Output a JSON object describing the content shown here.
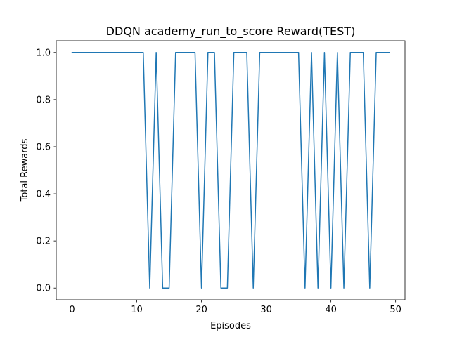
{
  "chart_data": {
    "type": "line",
    "title": "DDQN academy_run_to_score Reward(TEST)",
    "xlabel": "Episodes",
    "ylabel": "Total Rewards",
    "xlim": [
      -2.45,
      51.45
    ],
    "ylim": [
      -0.05,
      1.05
    ],
    "xticks": [
      0,
      10,
      20,
      30,
      40,
      50
    ],
    "xtick_labels": [
      "0",
      "10",
      "20",
      "30",
      "40",
      "50"
    ],
    "yticks": [
      0.0,
      0.2,
      0.4,
      0.6,
      0.8,
      1.0
    ],
    "ytick_labels": [
      "0.0",
      "0.2",
      "0.4",
      "0.6",
      "0.8",
      "1.0"
    ],
    "grid": false,
    "series": [
      {
        "color": "#1f77b4",
        "x": [
          0,
          1,
          2,
          3,
          4,
          5,
          6,
          7,
          8,
          9,
          10,
          11,
          12,
          13,
          14,
          15,
          16,
          17,
          18,
          19,
          20,
          21,
          22,
          23,
          24,
          25,
          26,
          27,
          28,
          29,
          30,
          31,
          32,
          33,
          34,
          35,
          36,
          37,
          38,
          39,
          40,
          41,
          42,
          43,
          44,
          45,
          46,
          47,
          48,
          49
        ],
        "y": [
          1,
          1,
          1,
          1,
          1,
          1,
          1,
          1,
          1,
          1,
          1,
          1,
          0,
          1,
          0,
          0,
          1,
          1,
          1,
          1,
          0,
          1,
          1,
          0,
          0,
          1,
          1,
          1,
          0,
          1,
          1,
          1,
          1,
          1,
          1,
          1,
          0,
          1,
          0,
          1,
          0,
          1,
          0,
          1,
          1,
          1,
          0,
          1,
          1,
          1
        ]
      }
    ]
  }
}
